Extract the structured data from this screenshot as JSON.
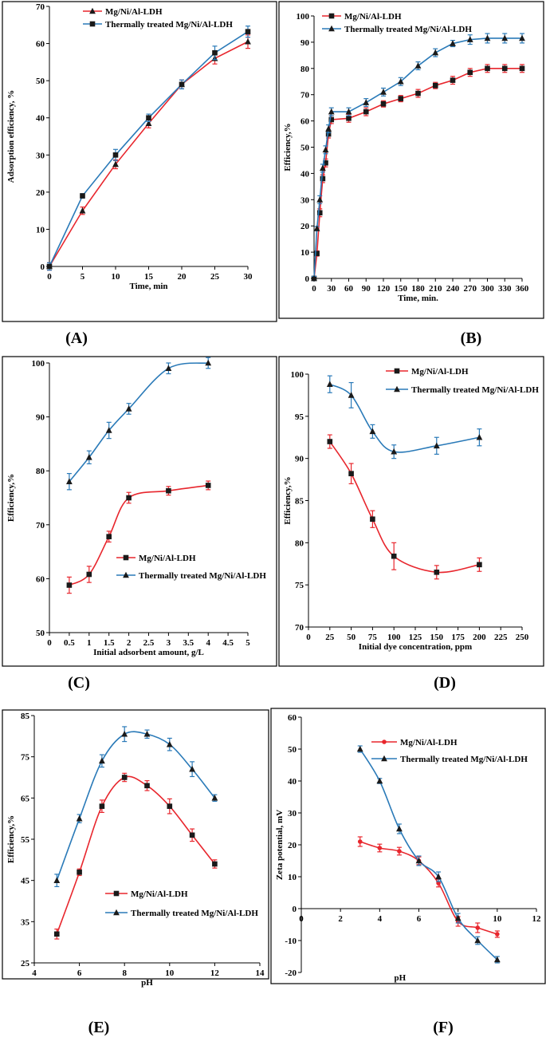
{
  "panel_labels": [
    "(A)",
    "(B)",
    "(C)",
    "(D)",
    "(E)",
    "(F)"
  ],
  "colors": {
    "red": "#e8262d",
    "blue": "#2a7ab8",
    "marker": "#1a1a1a",
    "frame": "#000000"
  },
  "chart_data": [
    {
      "id": "A",
      "type": "line",
      "label": "(A)",
      "xlabel": "Time, min",
      "ylabel": "Adsorption efficiency, %",
      "xlim": [
        0,
        30
      ],
      "ylim": [
        0,
        70
      ],
      "xticks": [
        0,
        5,
        10,
        15,
        20,
        25,
        30
      ],
      "yticks": [
        0,
        10,
        20,
        30,
        40,
        50,
        60,
        70
      ],
      "legend_position": "top-left",
      "smooth": false,
      "series": [
        {
          "name": "Mg/Ni/Al-LDH",
          "color": "#e8262d",
          "marker": "triangle",
          "x": [
            0,
            5,
            10,
            15,
            20,
            25,
            30
          ],
          "y": [
            0,
            15,
            27.5,
            38.5,
            49,
            56,
            60.5
          ],
          "err": [
            1,
            1,
            1.2,
            1.2,
            1.2,
            1.5,
            1.8
          ]
        },
        {
          "name": "Thermally treated Mg/Ni/Al-LDH",
          "color": "#2a7ab8",
          "marker": "square",
          "x": [
            0,
            5,
            10,
            15,
            20,
            25,
            30
          ],
          "y": [
            0,
            19,
            30,
            40,
            49,
            57.5,
            63.2
          ],
          "err": [
            1,
            0.6,
            1.5,
            1,
            1.2,
            1.8,
            1.5
          ]
        }
      ]
    },
    {
      "id": "B",
      "type": "line",
      "label": "(B)",
      "xlabel": "Time, min.",
      "ylabel": "Efficiency,%",
      "xlim": [
        0,
        360
      ],
      "ylim": [
        0,
        100
      ],
      "xticks": [
        0,
        30,
        60,
        90,
        120,
        150,
        180,
        210,
        240,
        270,
        300,
        330,
        360
      ],
      "yticks": [
        0,
        10,
        20,
        30,
        40,
        50,
        60,
        70,
        80,
        90,
        100
      ],
      "legend_position": "top-left",
      "smooth": false,
      "series": [
        {
          "name": "Mg/Ni/Al-LDH",
          "color": "#e8262d",
          "marker": "square",
          "x": [
            0,
            5,
            10,
            15,
            20,
            25,
            30,
            60,
            90,
            120,
            150,
            180,
            210,
            240,
            270,
            300,
            330,
            360
          ],
          "y": [
            0,
            9.5,
            25,
            38,
            44,
            55,
            60.5,
            61,
            63.5,
            66.5,
            68.5,
            70.5,
            73.5,
            75.5,
            78.5,
            80,
            80,
            80
          ],
          "err": [
            0.8,
            1,
            1.5,
            1.5,
            1.5,
            1.5,
            1.5,
            1.5,
            1.5,
            1.2,
            1.2,
            1.5,
            1.2,
            1.5,
            1.5,
            1.5,
            1.5,
            1.5
          ]
        },
        {
          "name": "Thermally treated Mg/Ni/Al-LDH",
          "color": "#2a7ab8",
          "marker": "triangle",
          "x": [
            0,
            5,
            10,
            15,
            20,
            25,
            30,
            60,
            90,
            120,
            150,
            180,
            210,
            240,
            270,
            300,
            330,
            360
          ],
          "y": [
            0,
            19,
            30,
            42,
            49,
            57,
            63.5,
            63.5,
            67,
            71,
            75,
            81,
            86,
            89.5,
            91,
            91.5,
            91.5,
            91.5
          ],
          "err": [
            0.8,
            0.8,
            1.5,
            1.5,
            1.5,
            1.5,
            1.5,
            1.5,
            1.5,
            1.5,
            1.5,
            1.5,
            1.5,
            1.2,
            1.8,
            1.8,
            1.8,
            1.8
          ]
        }
      ]
    },
    {
      "id": "C",
      "type": "line",
      "label": "(C)",
      "xlabel": "Initial adsorbent amount, g/L",
      "ylabel": "Efficiency,%",
      "xlim": [
        0,
        5
      ],
      "ylim": [
        50,
        100
      ],
      "xticks": [
        0,
        0.5,
        1,
        1.5,
        2,
        2.5,
        3,
        3.5,
        4,
        4.5,
        5
      ],
      "yticks": [
        50,
        60,
        70,
        80,
        90,
        100
      ],
      "legend_position": "lower-right",
      "smooth": true,
      "series": [
        {
          "name": "Mg/Ni/Al-LDH",
          "color": "#e8262d",
          "marker": "square",
          "x": [
            0.5,
            1,
            1.5,
            2,
            3,
            4
          ],
          "y": [
            58.8,
            60.8,
            67.8,
            75,
            76.3,
            77.3
          ],
          "err": [
            1.5,
            1.5,
            1,
            1,
            0.8,
            0.8
          ]
        },
        {
          "name": "Thermally treated Mg/Ni/Al-LDH",
          "color": "#2a7ab8",
          "marker": "triangle",
          "x": [
            0.5,
            1,
            1.5,
            2,
            3,
            4
          ],
          "y": [
            78,
            82.5,
            87.5,
            91.5,
            99,
            100
          ],
          "err": [
            1.5,
            1.2,
            1.5,
            1,
            1,
            1
          ]
        }
      ]
    },
    {
      "id": "D",
      "type": "line",
      "label": "(D)",
      "xlabel": "Initial dye concentration, ppm",
      "ylabel": "Efficiency,%",
      "xlim": [
        0,
        250
      ],
      "ylim": [
        70,
        100
      ],
      "xticks": [
        0,
        25,
        50,
        75,
        100,
        125,
        150,
        175,
        200,
        225,
        250
      ],
      "yticks": [
        70,
        75,
        80,
        85,
        90,
        95,
        100
      ],
      "legend_position": "top-right",
      "smooth": true,
      "series": [
        {
          "name": "Mg/Ni/Al-LDH",
          "color": "#e8262d",
          "marker": "square",
          "x": [
            25,
            50,
            75,
            100,
            150,
            200
          ],
          "y": [
            92,
            88.2,
            82.8,
            78.4,
            76.5,
            77.4
          ],
          "err": [
            0.8,
            1.2,
            1,
            1.6,
            0.8,
            0.8
          ]
        },
        {
          "name": "Thermally treated Mg/Ni/Al-LDH",
          "color": "#2a7ab8",
          "marker": "triangle",
          "x": [
            25,
            50,
            75,
            100,
            150,
            200
          ],
          "y": [
            98.8,
            97.5,
            93.2,
            90.8,
            91.5,
            92.5
          ],
          "err": [
            1,
            1.5,
            0.8,
            0.8,
            1,
            1
          ]
        }
      ]
    },
    {
      "id": "E",
      "type": "line",
      "label": "(E)",
      "xlabel": "pH",
      "ylabel": "Efficiency,%",
      "xlim": [
        4,
        14
      ],
      "ylim": [
        25,
        85
      ],
      "xticks": [
        4,
        6,
        8,
        10,
        12,
        14
      ],
      "yticks": [
        25,
        35,
        45,
        55,
        65,
        75,
        85
      ],
      "legend_position": "bottom-center",
      "smooth": true,
      "series": [
        {
          "name": "Mg/Ni/Al-LDH",
          "color": "#e8262d",
          "marker": "square",
          "x": [
            5,
            6,
            7,
            8,
            9,
            10,
            11,
            12
          ],
          "y": [
            32,
            47,
            63,
            70,
            68,
            63,
            56,
            49
          ],
          "err": [
            1.2,
            0.8,
            1.5,
            1,
            1.2,
            1.8,
            1.5,
            1
          ]
        },
        {
          "name": "Thermally treated Mg/Ni/Al-LDH",
          "color": "#2a7ab8",
          "marker": "triangle",
          "x": [
            5,
            6,
            7,
            8,
            9,
            10,
            11,
            12
          ],
          "y": [
            45,
            60,
            74,
            80.5,
            80.5,
            78,
            72,
            65
          ],
          "err": [
            1.5,
            1,
            1.5,
            1.8,
            1,
            1.5,
            1.8,
            0.8
          ]
        }
      ]
    },
    {
      "id": "F",
      "type": "line",
      "label": "(F)",
      "xlabel": "pH",
      "ylabel": "Zeta potential, mV",
      "xlim": [
        0,
        12
      ],
      "ylim": [
        -20,
        60
      ],
      "xticks": [
        0,
        2,
        4,
        6,
        8,
        10,
        12
      ],
      "yticks": [
        -20,
        -10,
        0,
        10,
        20,
        30,
        40,
        50,
        60
      ],
      "legend_position": "top-center",
      "smooth": true,
      "series": [
        {
          "name": "Mg/Ni/Al-LDH",
          "color": "#e8262d",
          "marker": "dot",
          "x": [
            3,
            4,
            5,
            6,
            7,
            8,
            9,
            10
          ],
          "y": [
            21,
            19,
            18,
            15,
            8,
            -4,
            -6,
            -8
          ],
          "err": [
            1.5,
            1.2,
            1.2,
            1.2,
            1.2,
            1.5,
            1.5,
            1
          ]
        },
        {
          "name": "Thermally treated Mg/Ni/Al-LDH",
          "color": "#2a7ab8",
          "marker": "triangle",
          "x": [
            3,
            4,
            5,
            6,
            7,
            8,
            9,
            10
          ],
          "y": [
            50,
            40,
            25,
            15,
            10,
            -3,
            -10,
            -16
          ],
          "err": [
            1,
            0.8,
            1.5,
            1.5,
            1.5,
            1.5,
            1.2,
            1
          ]
        }
      ]
    }
  ]
}
